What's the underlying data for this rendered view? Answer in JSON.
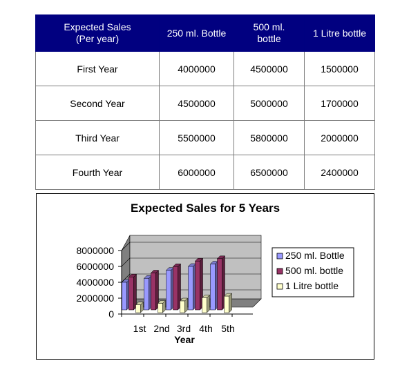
{
  "table": {
    "headers": [
      "Expected Sales\n(Per year)",
      "250 ml. Bottle",
      "500 ml.\nbottle",
      "1 Litre bottle"
    ],
    "rows": [
      {
        "label": "First Year",
        "values": [
          "4000000",
          "4500000",
          "1500000"
        ]
      },
      {
        "label": "Second Year",
        "values": [
          "4500000",
          "5000000",
          "1700000"
        ]
      },
      {
        "label": "Third Year",
        "values": [
          "5500000",
          "5800000",
          "2000000"
        ]
      },
      {
        "label": "Fourth Year",
        "values": [
          "6000000",
          "6500000",
          "2400000"
        ]
      }
    ]
  },
  "chart_data": {
    "type": "bar",
    "title": "Expected Sales for 5 Years",
    "xlabel": "Year",
    "ylabel": "",
    "categories": [
      "1st",
      "2nd",
      "3rd",
      "4th",
      "5th"
    ],
    "series": [
      {
        "name": "250 ml. Bottle",
        "color": "#9999ff",
        "values": [
          4000000,
          4500000,
          5500000,
          6000000,
          6300000
        ]
      },
      {
        "name": "500 ml. bottle",
        "color": "#993366",
        "values": [
          4500000,
          5000000,
          5800000,
          6500000,
          6800000
        ]
      },
      {
        "name": "1 Litre bottle",
        "color": "#ffffcc",
        "values": [
          1500000,
          1700000,
          2000000,
          2400000,
          2600000
        ]
      }
    ],
    "yticks": [
      "8000000",
      "6000000",
      "4000000",
      "2000000",
      "0"
    ],
    "ylim": [
      0,
      8000000
    ],
    "grid": true,
    "legend": "right",
    "plot_colors": {
      "wall": "#c0c0c0",
      "floor": "#808080"
    }
  }
}
